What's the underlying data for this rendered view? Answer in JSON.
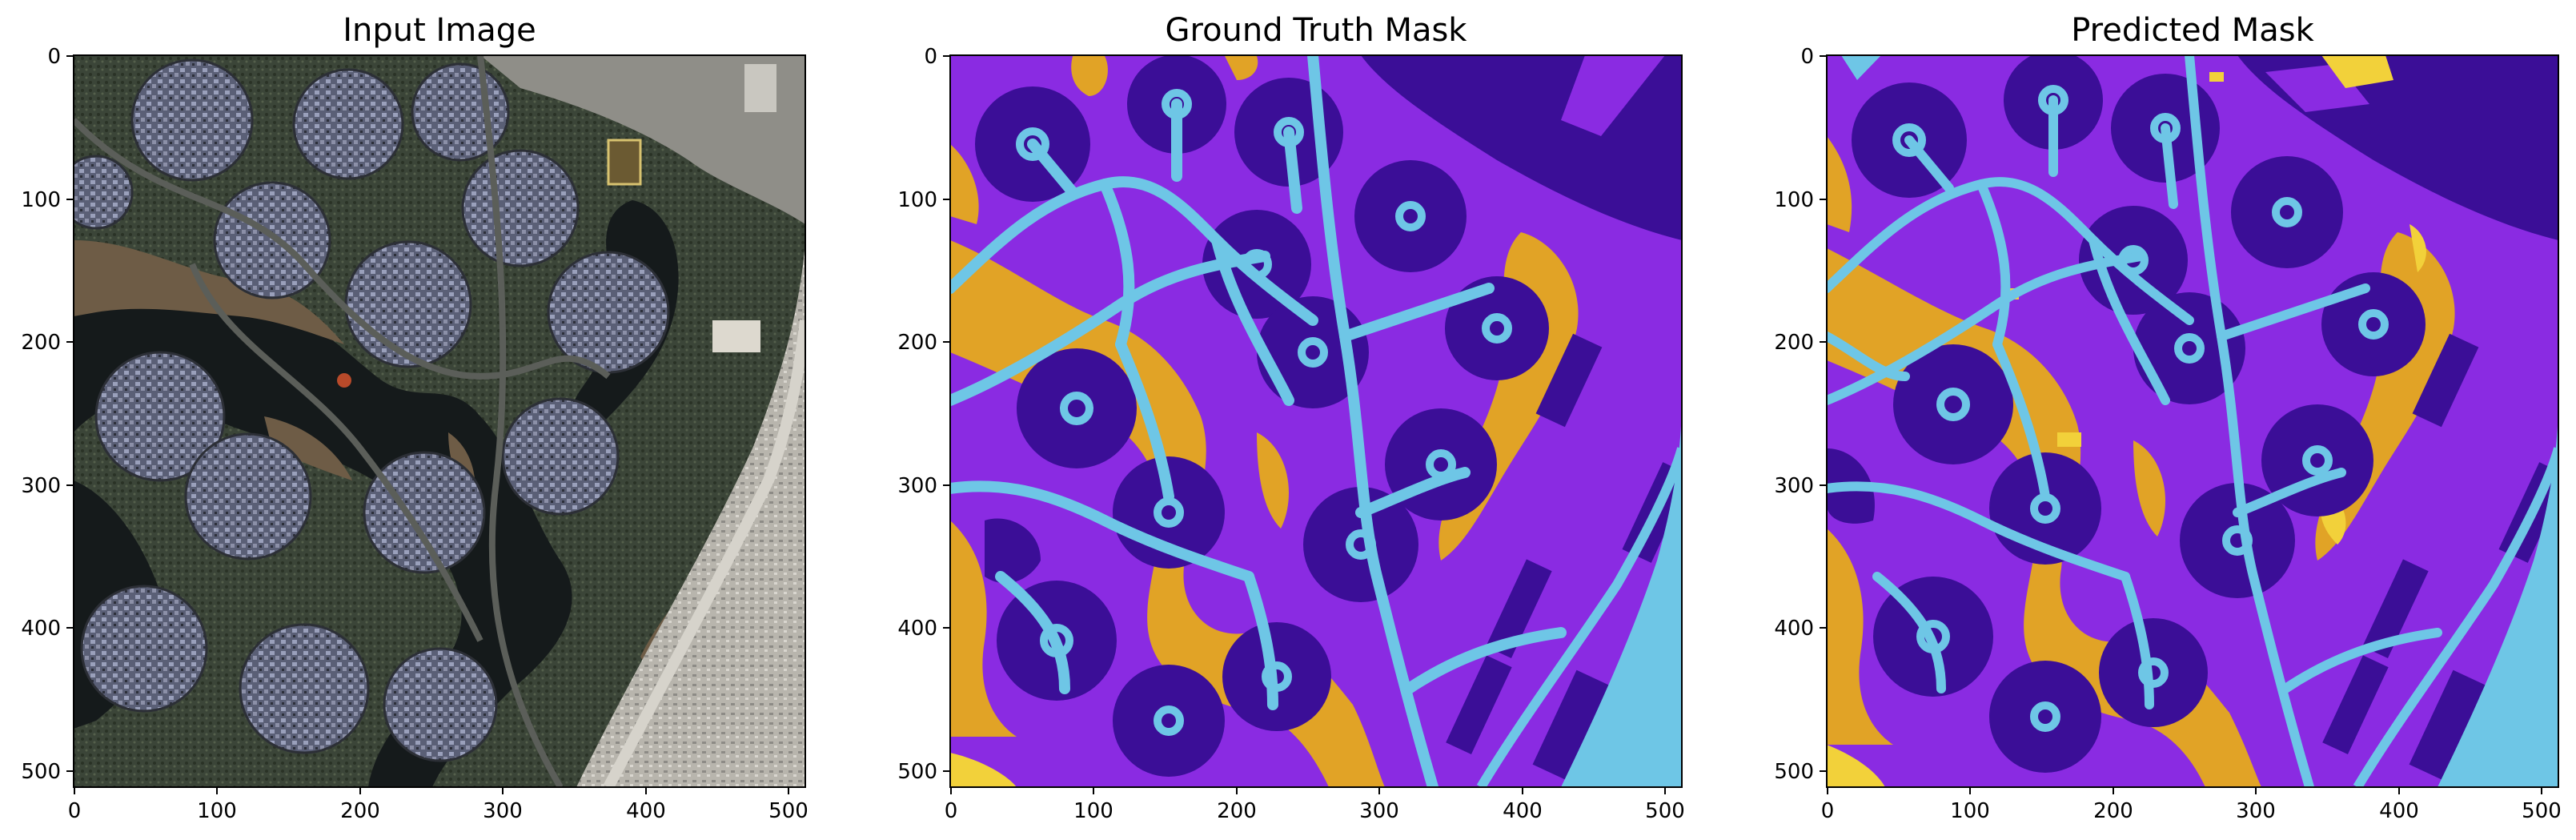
{
  "figure": {
    "panels": [
      {
        "id": "input",
        "title": "Input Image",
        "content": "satellite-image"
      },
      {
        "id": "ground-truth",
        "title": "Ground Truth Mask",
        "content": "segmentation-mask"
      },
      {
        "id": "predicted",
        "title": "Predicted Mask",
        "content": "segmentation-mask"
      }
    ],
    "axes": {
      "x_ticks": [
        "0",
        "100",
        "200",
        "300",
        "400",
        "500"
      ],
      "y_ticks": [
        "0",
        "100",
        "200",
        "300",
        "400",
        "500"
      ],
      "x_range": [
        0,
        512
      ],
      "y_range": [
        0,
        512
      ]
    },
    "class_colors": {
      "background_purple": "#8a2be2",
      "building_indigo": "#3b0e97",
      "road_cyan": "#6ec6e6",
      "water_orange": "#e1a326",
      "misc_yellow": "#f2d13a"
    },
    "satellite_colors": {
      "base": "#3f463f",
      "water": "#14191a",
      "sand": "#6b5a45",
      "pavement": "#b6b4ad",
      "roof": "#7a7f98"
    }
  }
}
